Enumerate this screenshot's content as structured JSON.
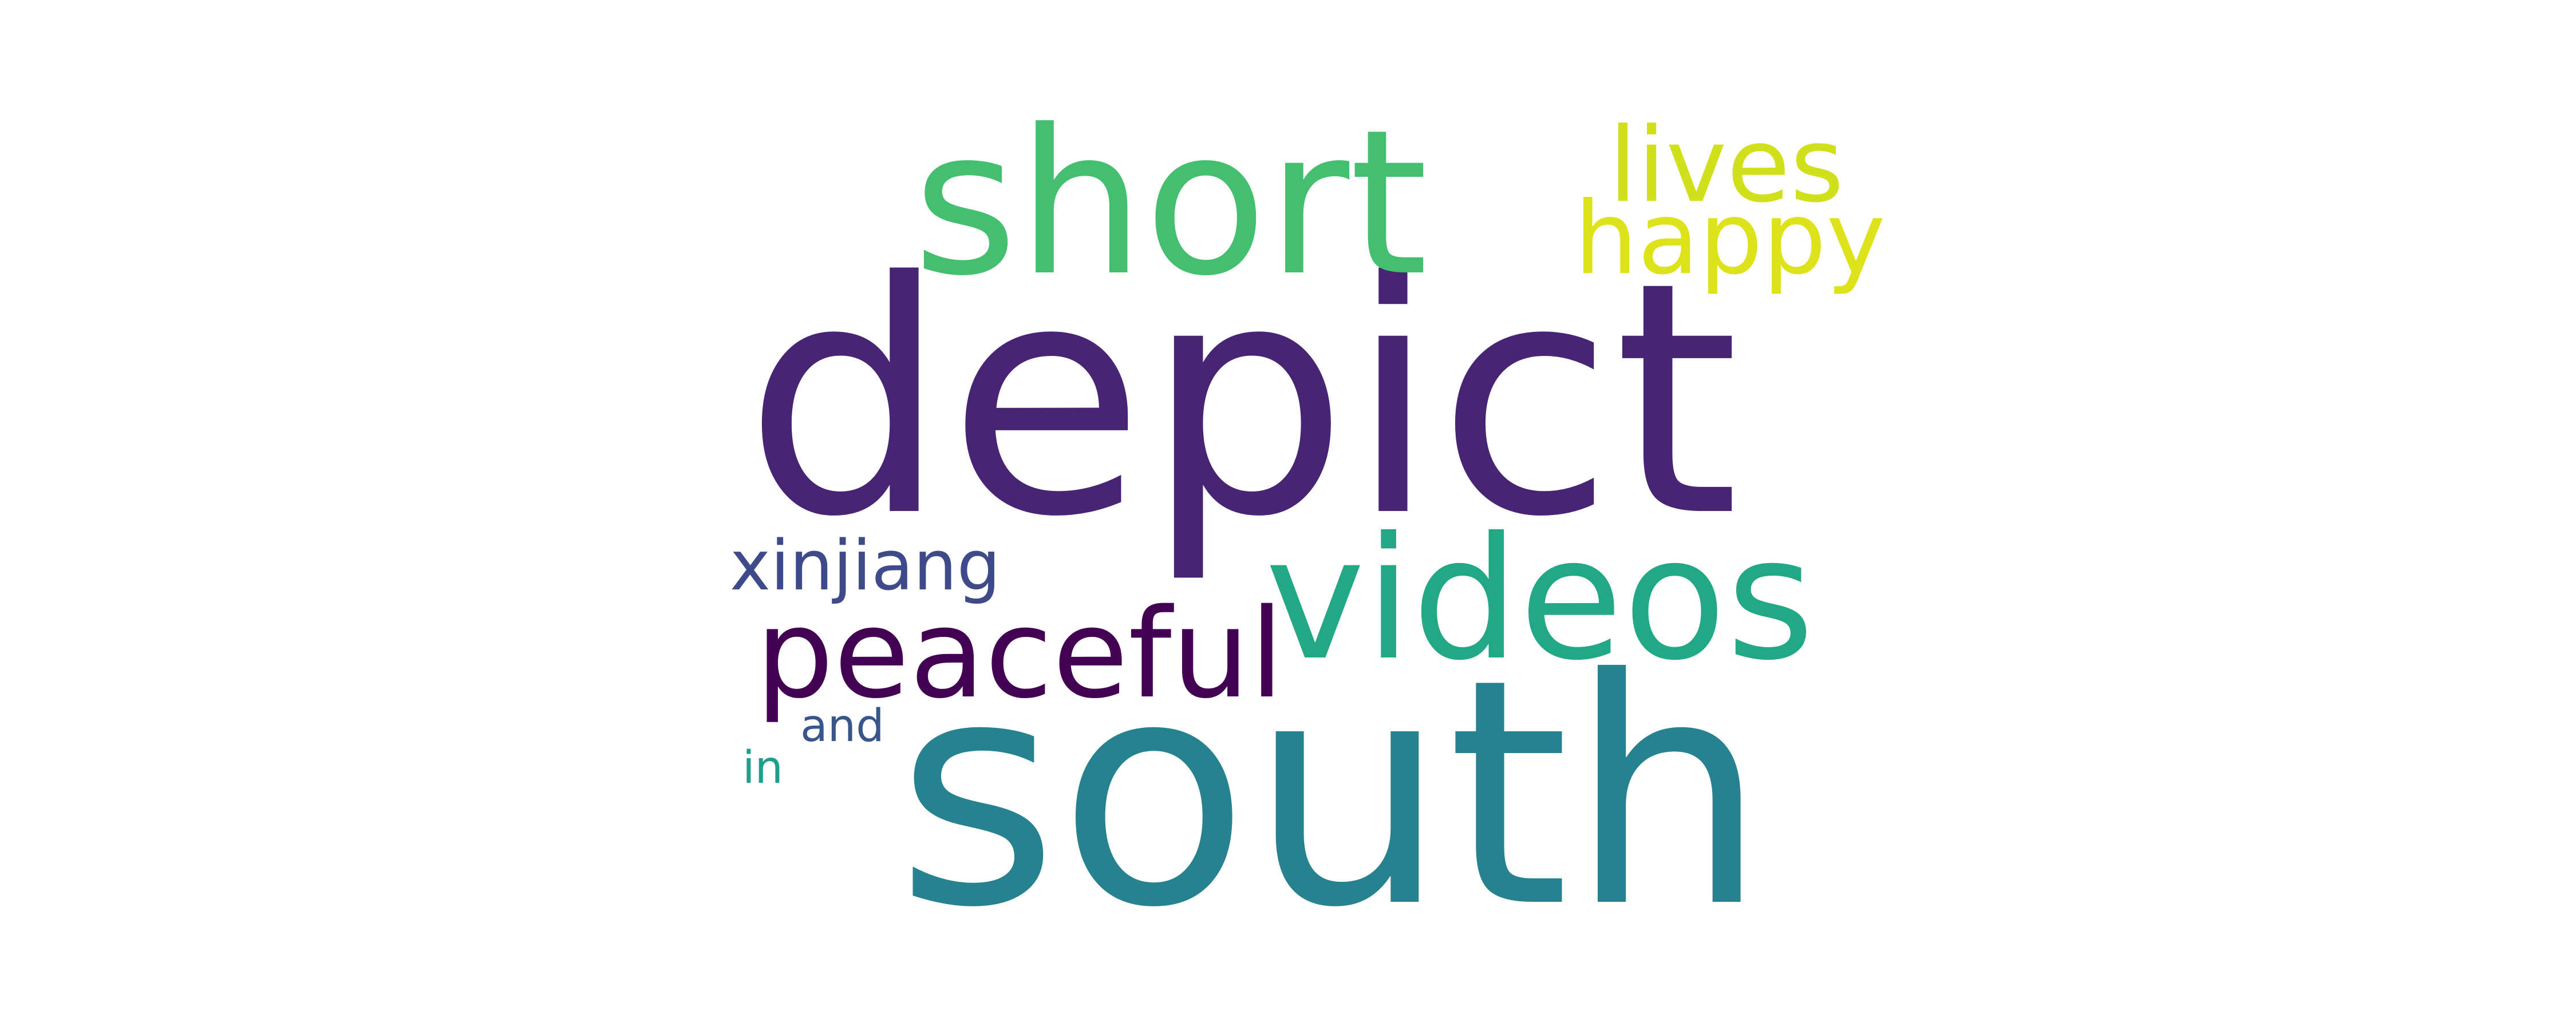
{
  "words": {
    "depict": {
      "text": "depict",
      "color": "#482475"
    },
    "south": {
      "text": "south",
      "color": "#26828e"
    },
    "short": {
      "text": "short",
      "color": "#44bf70"
    },
    "videos": {
      "text": "videos",
      "color": "#22a884"
    },
    "peaceful": {
      "text": "peaceful",
      "color": "#440154"
    },
    "lives": {
      "text": "lives",
      "color": "#d0e11c"
    },
    "happy": {
      "text": "happy",
      "color": "#dde318"
    },
    "xinjiang": {
      "text": "xinjiang",
      "color": "#3e4a89"
    },
    "and": {
      "text": "and",
      "color": "#39568c"
    },
    "in": {
      "text": "in",
      "color": "#1f9e89"
    }
  }
}
